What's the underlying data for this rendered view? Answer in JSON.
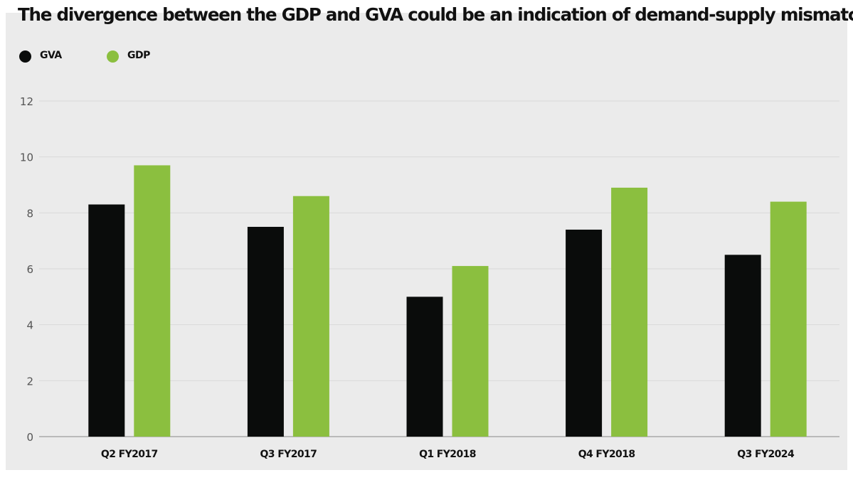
{
  "colors": {
    "gva": "#0a0c0b",
    "gdp": "#8bbf3f",
    "background": "#ebebeb",
    "grid": "#d9d9d9"
  },
  "chart_data": {
    "type": "bar",
    "title": "The divergence between the GDP and GVA could be an indication of demand-supply mismatch",
    "xlabel": "",
    "ylabel": "",
    "categories": [
      "Q2 FY2017",
      "Q3 FY2017",
      "Q1 FY2018",
      "Q4 FY2018",
      "Q3 FY2024"
    ],
    "series": [
      {
        "name": "GVA",
        "color": "#0a0c0b",
        "values": [
          8.3,
          7.5,
          5.0,
          7.4,
          6.5
        ]
      },
      {
        "name": "GDP",
        "color": "#8bbf3f",
        "values": [
          9.7,
          8.6,
          6.1,
          8.9,
          8.4
        ]
      }
    ],
    "ylim": [
      0,
      12
    ],
    "yticks": [
      0,
      2,
      4,
      6,
      8,
      10,
      12
    ],
    "grid": true,
    "legend_position": "top-left"
  }
}
